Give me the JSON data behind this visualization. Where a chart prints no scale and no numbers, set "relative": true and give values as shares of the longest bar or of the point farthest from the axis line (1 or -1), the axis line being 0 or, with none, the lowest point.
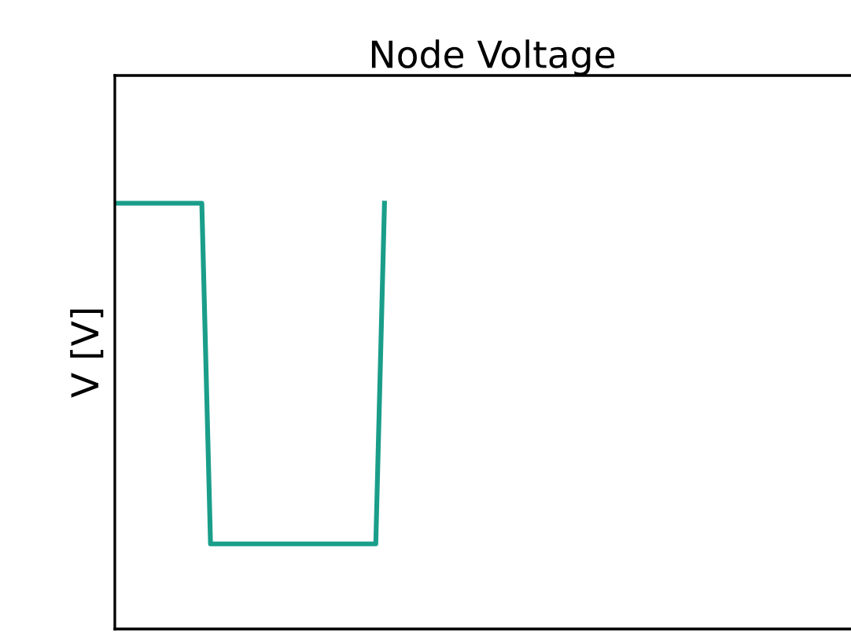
{
  "chart_data": {
    "type": "line",
    "title": "Node Voltage",
    "ylabel": "V [V]",
    "relative": true,
    "categories": [
      null,
      null,
      null,
      null,
      null,
      null,
      null,
      null,
      null,
      null,
      null,
      null,
      null,
      null,
      null,
      null,
      null,
      null,
      null,
      null,
      null,
      null,
      null,
      null,
      null,
      null,
      null,
      null,
      null,
      null,
      null,
      null
    ],
    "series": [
      {
        "color": "#1a9e8a",
        "values": [
          1,
          1,
          1,
          1,
          1,
          1,
          1,
          1,
          1,
          1,
          1,
          0.2,
          0.2,
          0.2,
          0.2,
          0.2,
          0.2,
          0.2,
          0.2,
          0.2,
          0.2,
          0.2,
          0.2,
          0.2,
          0.2,
          0.2,
          0.2,
          0.2,
          0.2,
          0.2,
          0.2,
          1
        ]
      }
    ]
  }
}
